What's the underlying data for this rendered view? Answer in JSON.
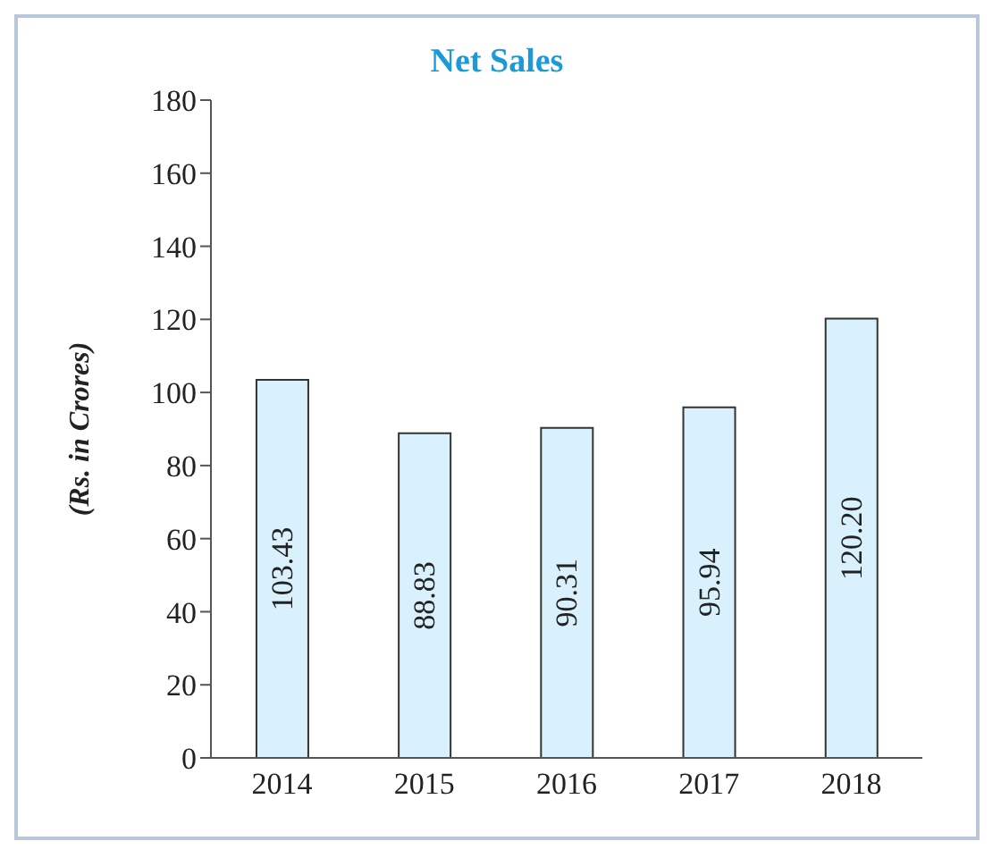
{
  "chart_data": {
    "type": "bar",
    "title": "Net Sales",
    "ylabel": "(Rs. in Crores)",
    "categories": [
      "2014",
      "2015",
      "2016",
      "2017",
      "2018"
    ],
    "values": [
      103.43,
      88.83,
      90.31,
      95.94,
      120.2
    ],
    "value_labels": [
      "103.43",
      "88.83",
      "90.31",
      "95.94",
      "120.20"
    ],
    "color": "#d9f1fc",
    "ylim": [
      0,
      180
    ],
    "yticks": [
      0,
      20,
      40,
      60,
      80,
      100,
      120,
      140,
      160,
      180
    ],
    "grid": false,
    "legend": false
  }
}
